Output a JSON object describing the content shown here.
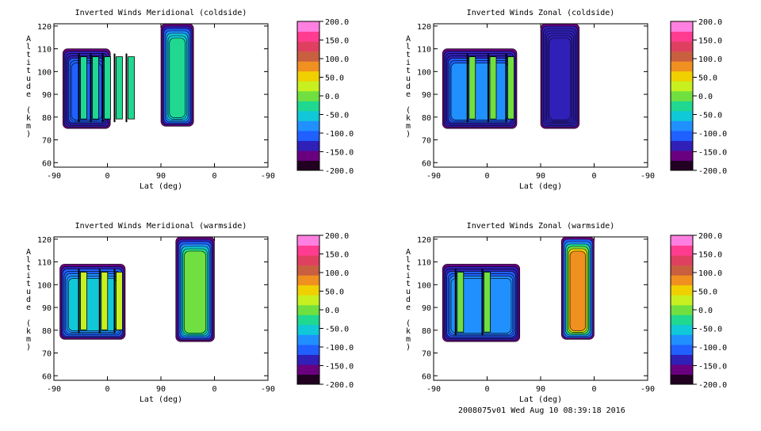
{
  "chart_data": [
    {
      "type": "heatmap",
      "title": "Inverted Winds Meridional (coldside)",
      "xlabel": "Lat (deg)",
      "ylabel": "Altitude (km)",
      "x_ticks": [
        "-90",
        "0",
        "90",
        "0",
        "-90"
      ],
      "y_ticks": [
        "60",
        "70",
        "80",
        "90",
        "100",
        "110",
        "120"
      ],
      "ylim": [
        58,
        121
      ],
      "colorbar_labels": [
        "200.0",
        "150.0",
        "100.0",
        "50.0",
        "0.0",
        "-50.0",
        "-100.0",
        "-150.0",
        "-200.0"
      ],
      "zlim": [
        -200,
        200
      ],
      "regions": [
        {
          "x_from": -75,
          "x_to": 5,
          "y_from": 75,
          "y_to": 110,
          "value": -110,
          "stripes": [
            -40,
            -20,
            0,
            20,
            40
          ]
        },
        {
          "x_from": 90,
          "x_to": 145,
          "y_from": 76,
          "y_to": 121,
          "value": -20
        }
      ]
    },
    {
      "type": "heatmap",
      "title": "Inverted Winds Zonal (coldside)",
      "xlabel": "Lat (deg)",
      "ylabel": "Altitude (km)",
      "x_ticks": [
        "-90",
        "0",
        "90",
        "0",
        "-90"
      ],
      "y_ticks": [
        "60",
        "70",
        "80",
        "90",
        "100",
        "110",
        "120"
      ],
      "ylim": [
        58,
        121
      ],
      "colorbar_labels": [
        "200.0",
        "150.0",
        "100.0",
        "50.0",
        "0.0",
        "-50.0",
        "-100.0",
        "-150.0",
        "-200.0"
      ],
      "zlim": [
        -200,
        200
      ],
      "regions": [
        {
          "x_from": -75,
          "x_to": 50,
          "y_from": 75,
          "y_to": 110,
          "value": -100,
          "stripes": [
            -25,
            10,
            40
          ]
        },
        {
          "x_from": 90,
          "x_to": 155,
          "y_from": 75,
          "y_to": 121,
          "value": -130
        }
      ]
    },
    {
      "type": "heatmap",
      "title": "Inverted Winds Meridional (warmside)",
      "xlabel": "Lat (deg)",
      "ylabel": "Altitude (km)",
      "x_ticks": [
        "-90",
        "0",
        "90",
        "0",
        "-90"
      ],
      "y_ticks": [
        "60",
        "70",
        "80",
        "90",
        "100",
        "110",
        "120"
      ],
      "ylim": [
        58,
        121
      ],
      "colorbar_labels": [
        "200.0",
        "150.0",
        "100.0",
        "50.0",
        "0.0",
        "-50.0",
        "-100.0",
        "-150.0",
        "-200.0"
      ],
      "zlim": [
        -200,
        200
      ],
      "regions": [
        {
          "x_from": -80,
          "x_to": 30,
          "y_from": 76,
          "y_to": 109,
          "value": -60,
          "stripes": [
            -40,
            -5,
            20
          ]
        },
        {
          "x_from": 115,
          "x_to": 180,
          "y_from": 75,
          "y_to": 121,
          "value": 0
        }
      ]
    },
    {
      "type": "heatmap",
      "title": "Inverted Winds Zonal (warmside)",
      "xlabel": "Lat (deg)",
      "ylabel": "Altitude (km)",
      "x_ticks": [
        "-90",
        "0",
        "90",
        "0",
        "-90"
      ],
      "y_ticks": [
        "60",
        "70",
        "80",
        "90",
        "100",
        "110",
        "120"
      ],
      "ylim": [
        58,
        121
      ],
      "colorbar_labels": [
        "200.0",
        "150.0",
        "100.0",
        "50.0",
        "0.0",
        "-50.0",
        "-100.0",
        "-150.0",
        "-200.0"
      ],
      "zlim": [
        -200,
        200
      ],
      "regions": [
        {
          "x_from": -75,
          "x_to": 55,
          "y_from": 75,
          "y_to": 109,
          "value": -80,
          "stripes": [
            -45,
            0
          ]
        },
        {
          "x_from": 125,
          "x_to": 180,
          "y_from": 76,
          "y_to": 121,
          "value": 90
        }
      ]
    }
  ],
  "footer": "2008075v01 Wed Aug 10 08:39:18 2016",
  "colors": {
    "scale": [
      "#220022",
      "#6a0080",
      "#3020b8",
      "#2060ff",
      "#2090ff",
      "#10c8d8",
      "#20d890",
      "#70e040",
      "#c8f020",
      "#f0d000",
      "#f09020",
      "#c86040",
      "#e04060",
      "#ff3c90",
      "#ff80e0"
    ],
    "contour": "#000000"
  }
}
